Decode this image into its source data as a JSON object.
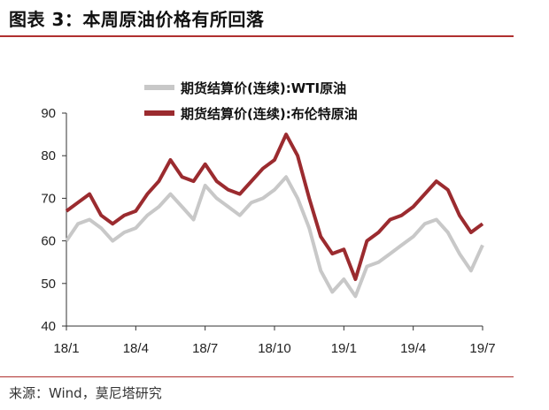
{
  "title": "图表 3：本周原油价格有所回落",
  "source": "来源：Wind，莫尼塔研究",
  "colors": {
    "wti": "#c8c8c8",
    "brent": "#9b2b2f",
    "rule": "#b0302f"
  },
  "chart_data": {
    "type": "line",
    "title": "",
    "xlabel": "",
    "ylabel": "",
    "ylim": [
      40,
      90
    ],
    "yticks": [
      "40",
      "50",
      "60",
      "70",
      "80",
      "90"
    ],
    "xticks": [
      "18/1",
      "18/4",
      "18/7",
      "18/10",
      "19/1",
      "19/4",
      "19/7"
    ],
    "grid": false,
    "legend": "top",
    "x": [
      "18/1",
      "18/1.5",
      "18/2",
      "18/2.5",
      "18/3",
      "18/3.5",
      "18/4",
      "18/4.5",
      "18/5",
      "18/5.5",
      "18/6",
      "18/6.5",
      "18/7",
      "18/7.5",
      "18/8",
      "18/8.5",
      "18/9",
      "18/9.5",
      "18/10",
      "18/10.5",
      "18/11",
      "18/11.5",
      "18/12",
      "18/12.5",
      "19/1",
      "19/1.5",
      "19/2",
      "19/2.5",
      "19/3",
      "19/3.5",
      "19/4",
      "19/4.5",
      "19/5",
      "19/5.5",
      "19/6",
      "19/6.5",
      "19/7"
    ],
    "series": [
      {
        "name": "期货结算价(连续):WTI原油",
        "values": [
          60,
          64,
          65,
          63,
          60,
          62,
          63,
          66,
          68,
          71,
          68,
          65,
          73,
          70,
          68,
          66,
          69,
          70,
          72,
          75,
          70,
          63,
          53,
          48,
          51,
          47,
          54,
          55,
          57,
          59,
          61,
          64,
          65,
          62,
          57,
          53,
          59
        ]
      },
      {
        "name": "期货结算价(连续):布伦特原油",
        "values": [
          67,
          69,
          71,
          66,
          64,
          66,
          67,
          71,
          74,
          79,
          75,
          74,
          78,
          74,
          72,
          71,
          74,
          77,
          79,
          85,
          80,
          70,
          61,
          57,
          58,
          51,
          60,
          62,
          65,
          66,
          68,
          71,
          74,
          72,
          66,
          62,
          64
        ]
      }
    ]
  }
}
